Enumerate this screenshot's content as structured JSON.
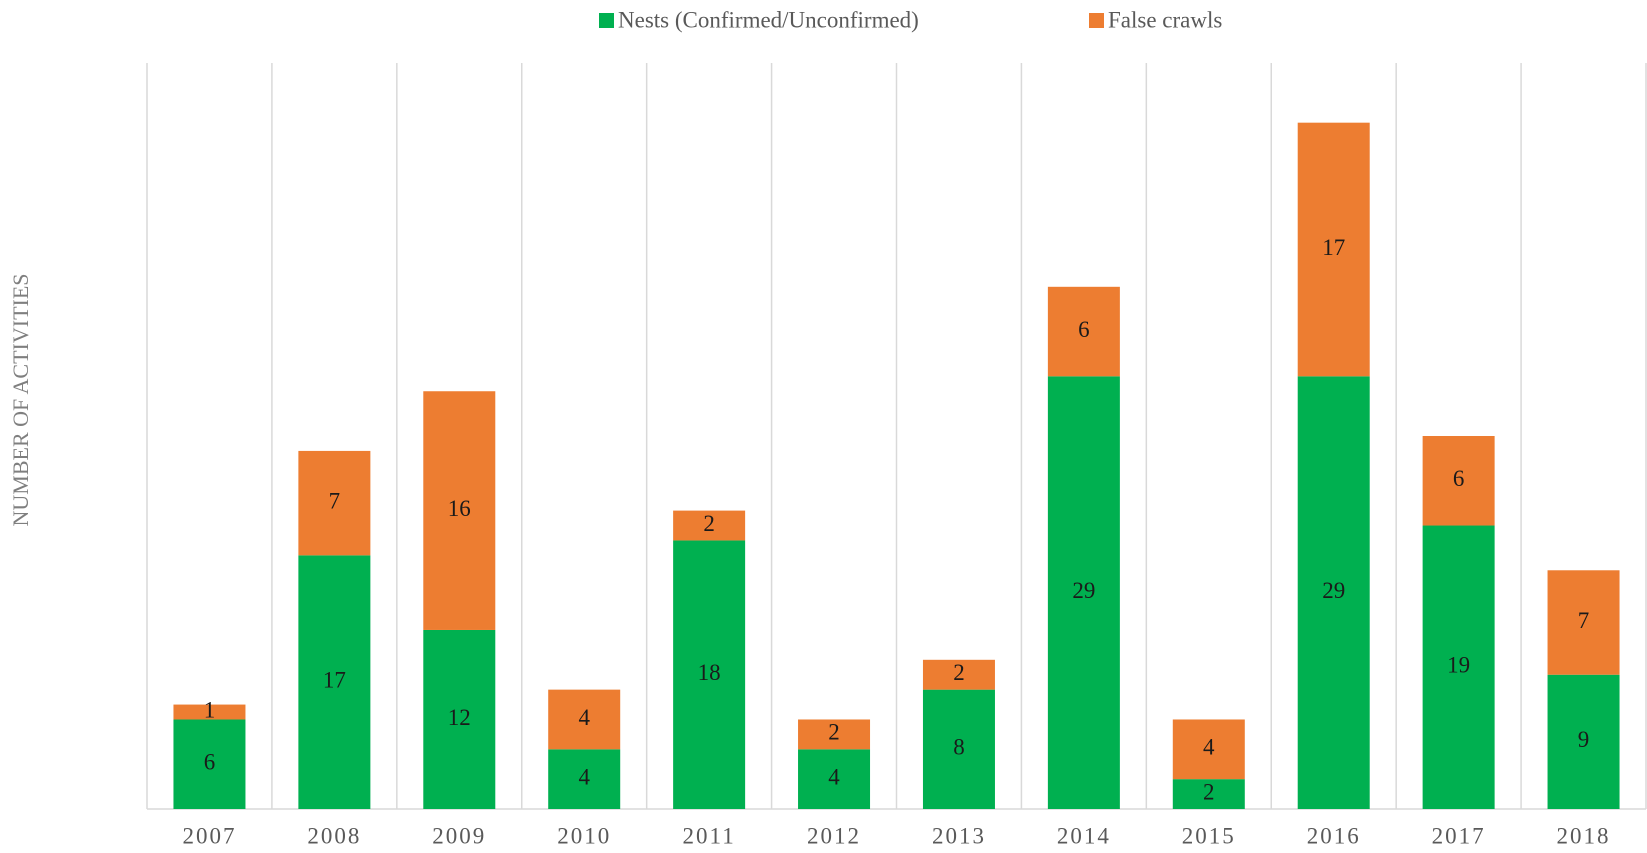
{
  "chart_data": {
    "type": "stacked_bar",
    "y_label": "NUMBER OF ACTIVITIES",
    "categories": [
      "2007",
      "2008",
      "2009",
      "2010",
      "2011",
      "2012",
      "2013",
      "2014",
      "2015",
      "2016",
      "2017",
      "2018"
    ],
    "series": [
      {
        "name": "Nests (Confirmed/Unconfirmed)",
        "color": "#00b050",
        "values": [
          6,
          17,
          12,
          4,
          18,
          4,
          8,
          29,
          2,
          29,
          19,
          9
        ]
      },
      {
        "name": "False crawls",
        "color": "#ed7d31",
        "values": [
          1,
          7,
          16,
          4,
          2,
          2,
          2,
          6,
          4,
          17,
          6,
          7
        ]
      }
    ],
    "ylim": [
      0,
      50
    ],
    "legend": "top"
  }
}
